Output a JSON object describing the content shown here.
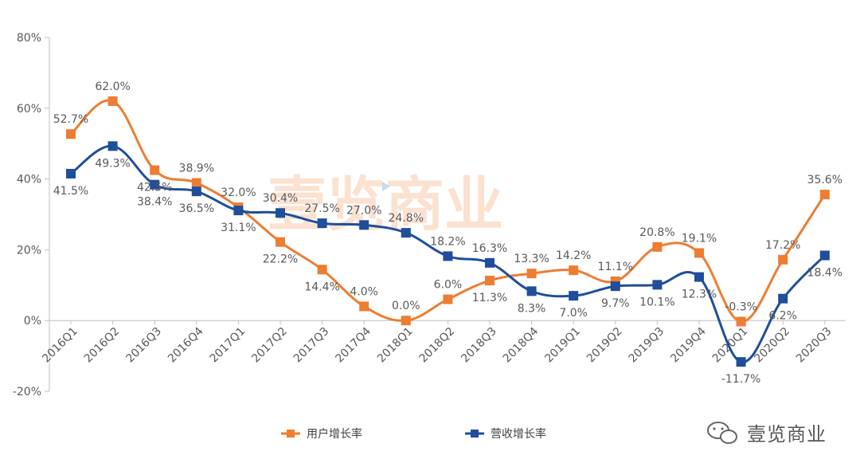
{
  "watermark": "壹览商业",
  "brand": {
    "name": "壹览商业",
    "icon": "wechat-icon"
  },
  "chart_data": {
    "type": "line",
    "title": "",
    "xlabel": "",
    "ylabel": "",
    "categories": [
      "2016Q1",
      "2016Q2",
      "2016Q3",
      "2016Q4",
      "2017Q1",
      "2017Q2",
      "2017Q3",
      "2017Q4",
      "2018Q1",
      "2018Q2",
      "2018Q3",
      "2018Q4",
      "2019Q1",
      "2019Q2",
      "2019Q3",
      "2019Q4",
      "2020Q1",
      "2020Q2",
      "2020Q3"
    ],
    "yticks": [
      "-20%",
      "0%",
      "20%",
      "40%",
      "60%",
      "80%"
    ],
    "ylim": [
      -20,
      80
    ],
    "grid": false,
    "legend_position": "bottom",
    "series": [
      {
        "name": "用户增长率",
        "color": "#ED7D31",
        "values": [
          52.7,
          62.0,
          42.5,
          38.9,
          32.0,
          22.2,
          14.4,
          4.0,
          0.0,
          6.0,
          11.3,
          13.3,
          14.2,
          11.1,
          20.8,
          19.1,
          -0.3,
          17.2,
          35.6
        ],
        "labels": [
          "52.7%",
          "62.0%",
          "42.5%",
          "38.9%",
          "32.0%",
          "22.2%",
          "14.4%",
          "4.0%",
          "0.0%",
          "6.0%",
          "11.3%",
          "13.3%",
          "14.2%",
          "11.1%",
          "20.8%",
          "19.1%",
          "-0.3%",
          "17.2%",
          "35.6%"
        ]
      },
      {
        "name": "营收增长率",
        "color": "#1F4E9A",
        "values": [
          41.5,
          49.3,
          38.4,
          36.5,
          31.1,
          30.4,
          27.5,
          27.0,
          24.8,
          18.2,
          16.3,
          8.3,
          7.0,
          9.7,
          10.1,
          12.3,
          -11.7,
          6.2,
          18.4
        ],
        "labels": [
          "41.5%",
          "49.3%",
          "38.4%",
          "36.5%",
          "31.1%",
          "30.4%",
          "27.5%",
          "27.0%",
          "24.8%",
          "18.2%",
          "16.3%",
          "8.3%",
          "7.0%",
          "9.7%",
          "10.1%",
          "12.3%",
          "-11.7%",
          "6.2%",
          "18.4%"
        ]
      }
    ]
  }
}
